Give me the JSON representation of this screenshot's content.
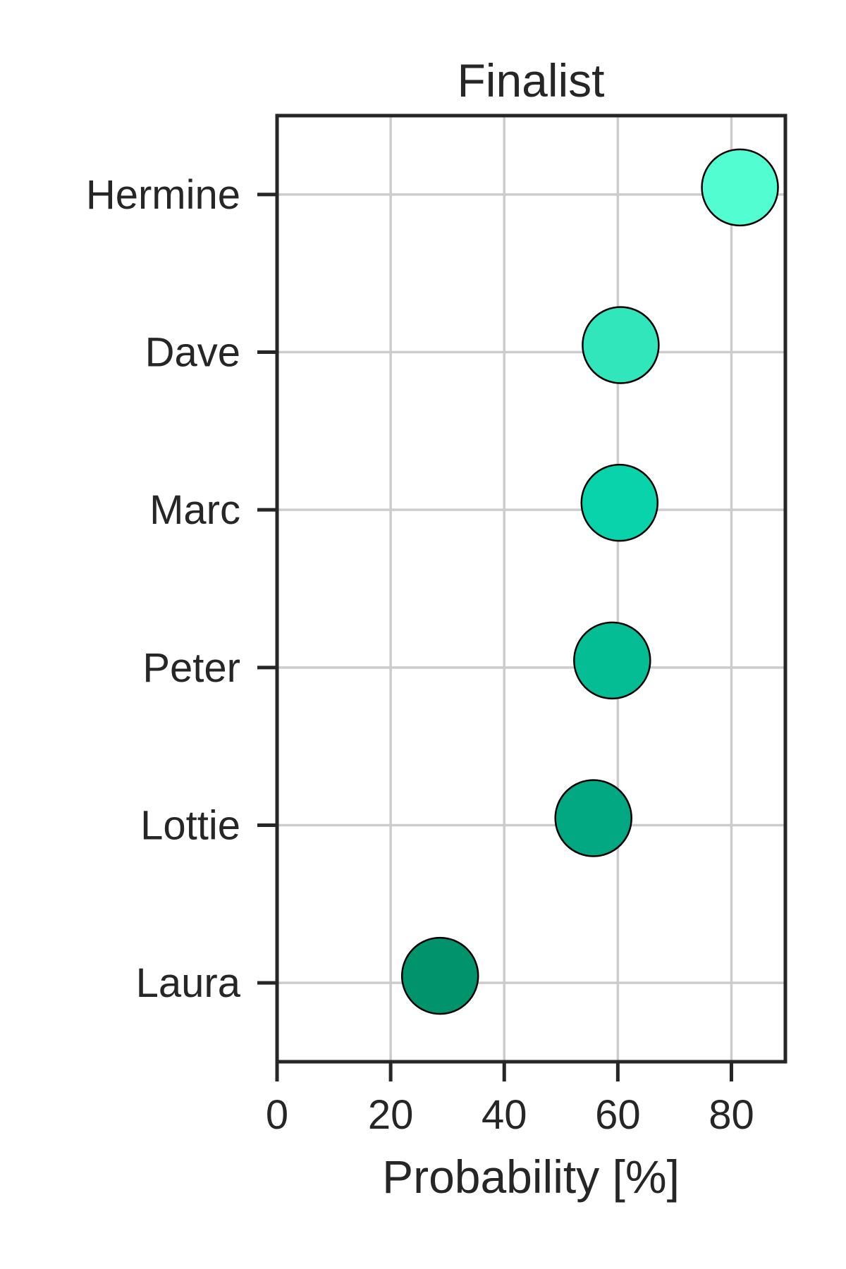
{
  "chart_data": {
    "type": "scatter",
    "title": "Finalist",
    "xlabel": "Probability [%]",
    "ylabel": "",
    "xlim": [
      0,
      89.5
    ],
    "xticks": [
      0,
      20,
      40,
      60,
      80
    ],
    "xtick_labels": [
      "0",
      "20",
      "40",
      "60",
      "80"
    ],
    "grid": true,
    "legend": "none",
    "points": [
      {
        "name": "Hermine",
        "x": 81.5,
        "color": "#52fdd2"
      },
      {
        "name": "Dave",
        "x": 60.5,
        "color": "#32e6bc"
      },
      {
        "name": "Marc",
        "x": 60.3,
        "color": "#08d3aa"
      },
      {
        "name": "Peter",
        "x": 59.0,
        "color": "#04bd94"
      },
      {
        "name": "Lottie",
        "x": 55.7,
        "color": "#02a882"
      },
      {
        "name": "Laura",
        "x": 28.7,
        "color": "#00936c"
      }
    ]
  }
}
